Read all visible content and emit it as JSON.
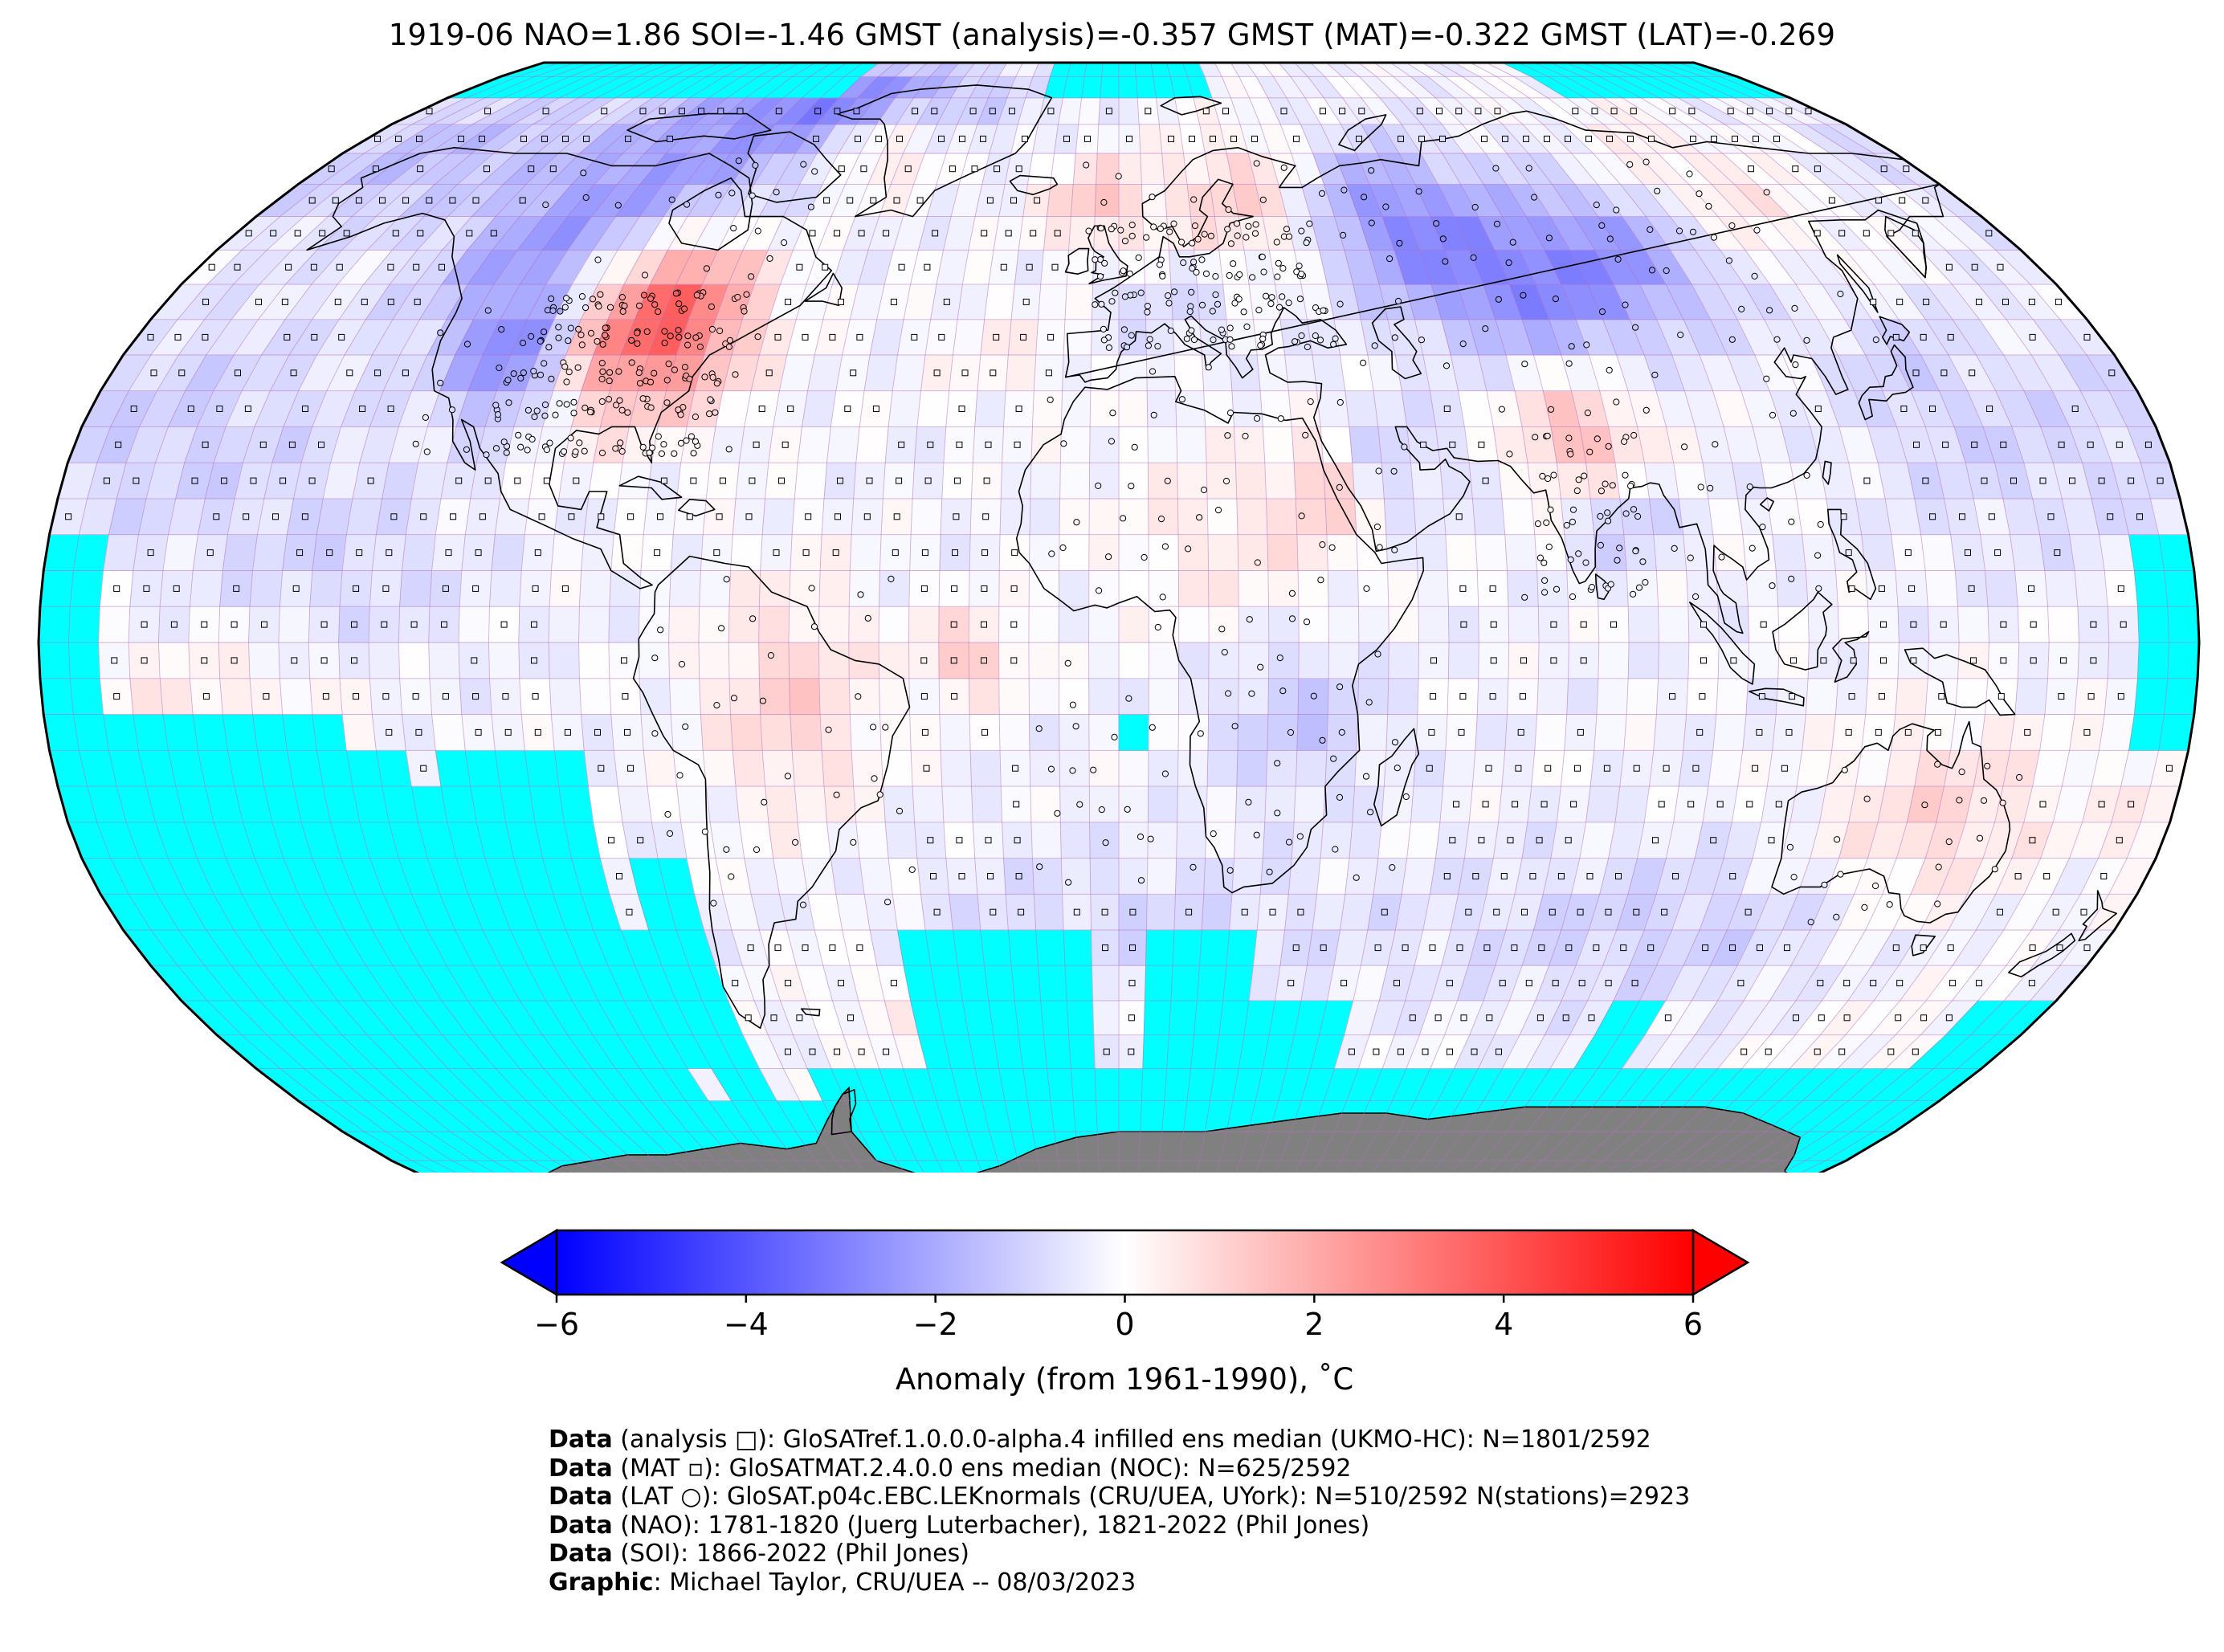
{
  "title": "1919-06 NAO=1.86 SOI=-1.46 GMST (analysis)=-0.357 GMST (MAT)=-0.322 GMST (LAT)=-0.269",
  "colorbar": {
    "ticks": [
      "−6",
      "−4",
      "−2",
      "0",
      "2",
      "4",
      "6"
    ],
    "tick_values": [
      -6,
      -4,
      -2,
      0,
      2,
      4,
      6
    ],
    "range": [
      -6,
      6
    ],
    "label": "Anomaly (from 1961-1990), ˚C",
    "colors": {
      "low": "#0000ff",
      "mid": "#ffffff",
      "high": "#ff0000"
    },
    "extend": "both"
  },
  "map": {
    "projection": "Robinson",
    "missing_color": "#00ffff",
    "antarctica_color": "#808080",
    "grid_color": "#b070c0"
  },
  "credits": [
    {
      "bold": "Data",
      "text": " (analysis □): GloSATref.1.0.0.0-alpha.4 infilled ens median (UKMO-HC): N=1801/2592"
    },
    {
      "bold": "Data",
      "text": " (MAT ▫): GloSATMAT.2.4.0.0 ens median (NOC): N=625/2592"
    },
    {
      "bold": "Data",
      "text": " (LAT ○): GloSAT.p04c.EBC.LEKnormals (CRU/UEA, UYork): N=510/2592 N(stations)=2923"
    },
    {
      "bold": "Data",
      "text": " (NAO): 1781-1820 (Juerg Luterbacher), 1821-2022 (Phil Jones)"
    },
    {
      "bold": "Data",
      "text": " (SOI): 1866-2022 (Phil Jones)"
    },
    {
      "bold": "Graphic",
      "text": ": Michael Taylor, CRU/UEA -- 08/03/2023"
    }
  ]
}
